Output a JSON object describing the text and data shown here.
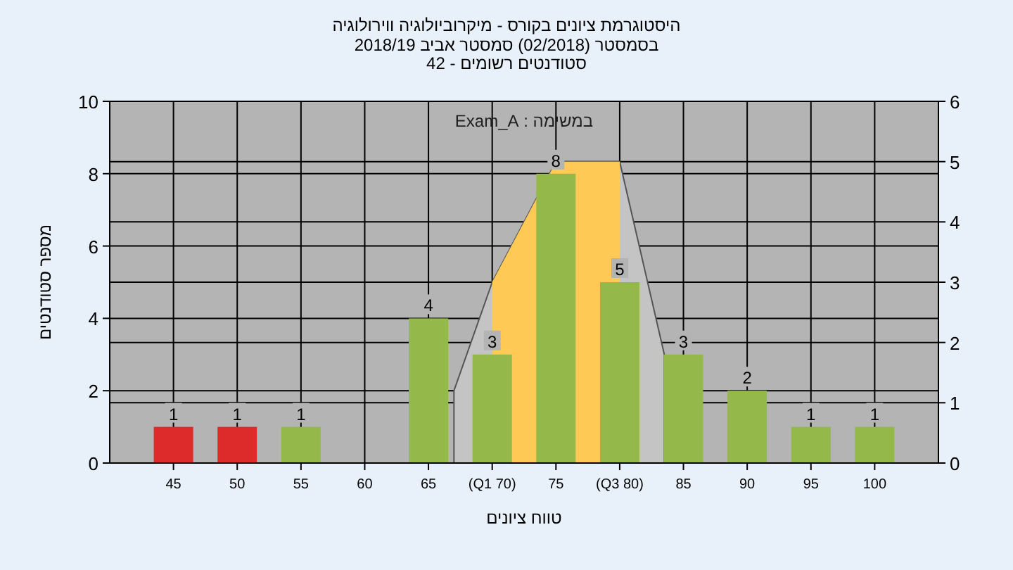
{
  "chart_data": {
    "type": "bar",
    "title": "היסטוגרמת ציונים בקורס - מיקרוביולוגיה ווירולוגיה",
    "subtitle": "בסמסטר (02/2018) סמסטר אביב 2018/19\nסטודנטים רשומים - 42",
    "xlabel": "טווח ציונים",
    "ylabel": "מספר סטודנטים",
    "annotations": [
      "במשימה : Exam_A"
    ],
    "x": [
      45,
      50,
      55,
      60,
      65,
      70,
      75,
      80,
      85,
      90,
      95,
      100
    ],
    "xlim": [
      40,
      105
    ],
    "xticks": [
      45,
      50,
      55,
      60,
      65,
      {
        "value": 70,
        "label": "(Q1 70)"
      },
      75,
      {
        "value": 80,
        "label": "(Q3 80)"
      },
      85,
      90,
      95,
      100
    ],
    "ylim": [
      0,
      10
    ],
    "yticks": [
      0,
      2,
      4,
      6,
      8,
      10
    ],
    "y2lim": [
      0,
      6
    ],
    "y2ticks": [
      0,
      1,
      2,
      3,
      4,
      5,
      6
    ],
    "grid": true,
    "series": [
      {
        "type": "area",
        "axis": "y2",
        "color": "#c4c4c4",
        "x": [
          67,
          70,
          75,
          80,
          83.5
        ],
        "values": [
          1.2,
          3,
          5,
          5,
          1.8
        ]
      },
      {
        "type": "area",
        "axis": "y2",
        "color": "#ffc955",
        "x": [
          70,
          75,
          80
        ],
        "values": [
          3,
          5,
          5
        ]
      },
      {
        "type": "bar",
        "colors": [
          "#dd2a2a",
          "#dd2a2a",
          "#94b84a",
          "#94b84a",
          "#94b84a",
          "#94b84a",
          "#94b84a",
          "#94b84a",
          "#94b84a",
          "#94b84a",
          "#94b84a",
          "#94b84a"
        ],
        "values": [
          1,
          1,
          1,
          0,
          4,
          3,
          8,
          5,
          3,
          2,
          1,
          1
        ],
        "value_labels": [
          "1",
          "1",
          "1",
          null,
          "4",
          "3",
          "8",
          "5",
          "3",
          "2",
          "1",
          "1"
        ]
      }
    ]
  }
}
